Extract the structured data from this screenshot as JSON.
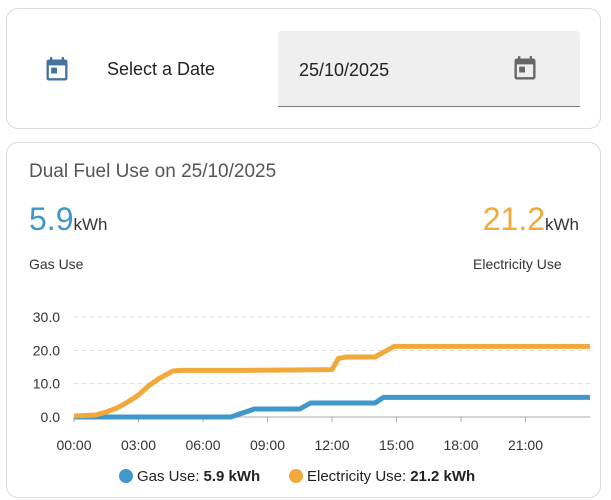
{
  "date_picker": {
    "label": "Select a Date",
    "value": "25/10/2025"
  },
  "card": {
    "title": "Dual Fuel Use on 25/10/2025",
    "unit": "kWh",
    "stats": [
      {
        "value": 5.9
      },
      {
        "value": 21.2
      }
    ]
  },
  "chart_data": {
    "type": "line",
    "xlim": [
      0,
      24
    ],
    "xticks": [
      {
        "value": 0,
        "label": "00:00"
      },
      {
        "value": 3,
        "label": "03:00"
      },
      {
        "value": 6,
        "label": "06:00"
      },
      {
        "value": 9,
        "label": "09:00"
      },
      {
        "value": 12,
        "label": "12:00"
      },
      {
        "value": 15,
        "label": "15:00"
      },
      {
        "value": 18,
        "label": "18:00"
      },
      {
        "value": 21,
        "label": "21:00"
      }
    ],
    "ylim": [
      0,
      30
    ],
    "yticks": [
      {
        "value": 0,
        "label": "0.0"
      },
      {
        "value": 10,
        "label": "10.0"
      },
      {
        "value": 20,
        "label": "20.0"
      },
      {
        "value": 30,
        "label": "30.0"
      }
    ],
    "grid": true,
    "series": [
      {
        "name": "Gas Use",
        "legend_label": "Gas Use:",
        "legend_value": "5.9 kWh",
        "color": "#4097c9",
        "x": [
          0,
          7.3,
          7.7,
          8.4,
          10.5,
          11,
          14,
          14.4,
          24
        ],
        "values": [
          0,
          0,
          0.9,
          2.4,
          2.4,
          4.2,
          4.2,
          5.9,
          5.9
        ]
      },
      {
        "name": "Electricity Use",
        "legend_label": "Electricity Use:",
        "legend_value": "21.2 kWh",
        "color": "#f2a93b",
        "x": [
          0,
          1,
          1.5,
          2,
          2.5,
          3,
          3.5,
          4,
          4.6,
          5,
          8,
          10,
          12,
          12.3,
          12.7,
          14,
          14.9,
          24
        ],
        "values": [
          0.3,
          0.6,
          1.5,
          2.7,
          4.5,
          6.6,
          9.5,
          11.7,
          13.8,
          14,
          14,
          14.1,
          14.2,
          17.6,
          18,
          18,
          21.2,
          21.2
        ]
      }
    ]
  }
}
